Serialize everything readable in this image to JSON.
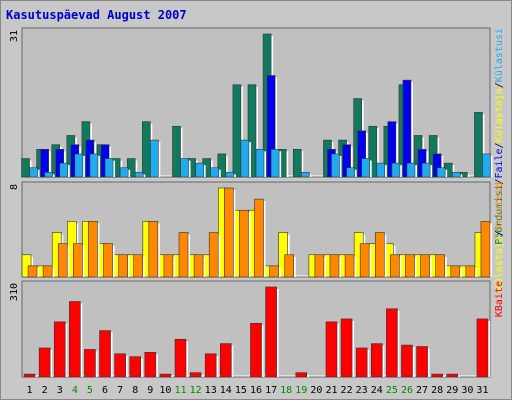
{
  "chart_data": {
    "type": "bar",
    "title": "Kasutuspäevad August 2007",
    "days": [
      "1",
      "2",
      "3",
      "4",
      "5",
      "6",
      "7",
      "8",
      "9",
      "10",
      "11",
      "12",
      "13",
      "14",
      "15",
      "16",
      "17",
      "18",
      "19",
      "20",
      "21",
      "22",
      "23",
      "24",
      "25",
      "26",
      "27",
      "28",
      "29",
      "30",
      "31"
    ],
    "weekend_days": [
      "4",
      "5",
      "11",
      "12",
      "18",
      "19",
      "25",
      "26"
    ],
    "panels": [
      {
        "id": "hits",
        "ymax_label": "31",
        "ymax": 31,
        "axis_labels": [
          "Pöördumisi",
          "Faile",
          "Külastaja",
          "Külastusi"
        ],
        "series": [
          {
            "name": "Pöördumisi",
            "color": "#117a5e",
            "values": [
              4,
              6,
              7,
              9,
              12,
              7,
              4,
              4,
              12,
              0,
              11,
              4,
              4,
              5,
              20,
              20,
              31,
              6,
              6,
              0,
              8,
              8,
              17,
              11,
              11,
              20,
              9,
              9,
              3,
              1,
              14
            ]
          },
          {
            "name": "Faile",
            "color": "#0000ee",
            "values": [
              0,
              6,
              6,
              7,
              8,
              7,
              0,
              0,
              0,
              0,
              0,
              0,
              0,
              0,
              0,
              0,
              22,
              0,
              0,
              0,
              6,
              7,
              10,
              0,
              12,
              21,
              6,
              5,
              0,
              0,
              0
            ]
          },
          {
            "name": "Külastusi",
            "color": "#22aaee",
            "values": [
              2,
              1,
              3,
              5,
              5,
              4,
              2,
              1,
              8,
              0,
              4,
              3,
              2,
              1,
              8,
              6,
              6,
              0,
              1,
              0,
              5,
              2,
              4,
              3,
              3,
              3,
              3,
              2,
              1,
              0,
              5
            ]
          }
        ]
      },
      {
        "id": "visits",
        "ymax_label": "8",
        "ymax": 8,
        "axis_labels": [
          "Külastaja",
          "Arvuteid"
        ],
        "series": [
          {
            "name": "Külastaja",
            "color": "#ffff00",
            "values": [
              2,
              1,
              4,
              5,
              5,
              3,
              2,
              2,
              5,
              2,
              2,
              2,
              2,
              8,
              6,
              6,
              1,
              4,
              0,
              2,
              2,
              2,
              4,
              3,
              3,
              2,
              2,
              2,
              1,
              1,
              4
            ]
          },
          {
            "name": "Arvuteid",
            "color": "#ff8800",
            "values": [
              1,
              1,
              3,
              3,
              5,
              3,
              2,
              2,
              5,
              2,
              4,
              2,
              4,
              8,
              6,
              7,
              1,
              2,
              0,
              2,
              2,
              2,
              3,
              4,
              2,
              2,
              2,
              2,
              1,
              1,
              5
            ]
          }
        ]
      },
      {
        "id": "bytes",
        "ymax_label": "310",
        "ymax": 310,
        "axis_labels": [
          "KBaite"
        ],
        "series": [
          {
            "name": "KBaite",
            "color": "#ff0000",
            "values": [
              10,
              100,
              190,
              260,
              95,
              160,
              80,
              70,
              85,
              10,
              130,
              15,
              80,
              115,
              0,
              185,
              310,
              0,
              15,
              0,
              190,
              200,
              100,
              115,
              235,
              110,
              105,
              10,
              10,
              0,
              200
            ]
          }
        ]
      }
    ]
  }
}
